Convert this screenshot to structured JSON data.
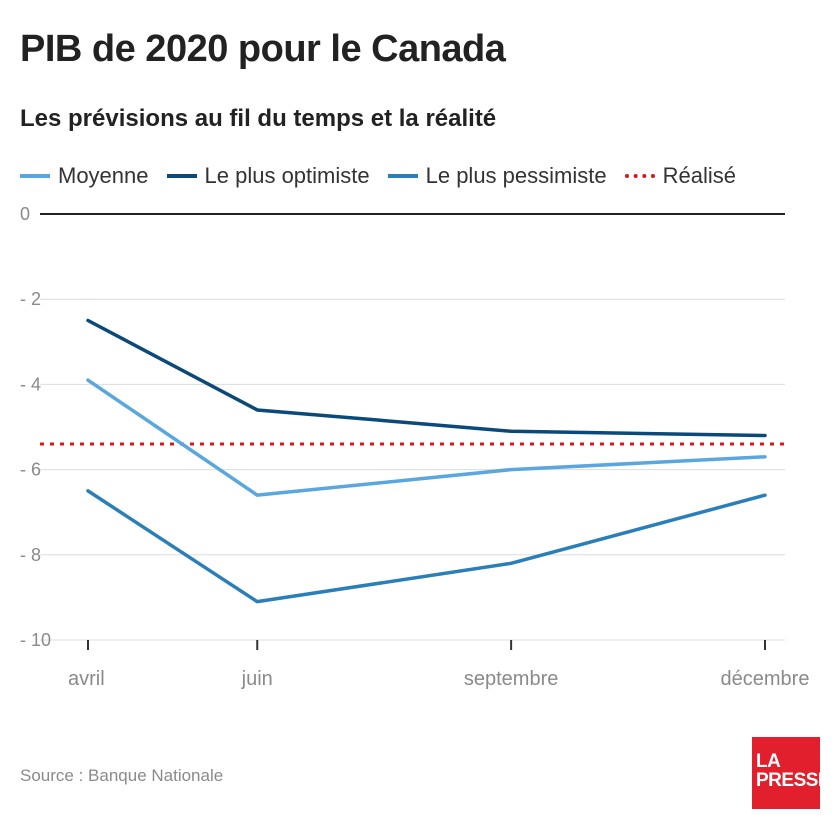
{
  "title": "PIB de 2020 pour le Canada",
  "subtitle": "Les prévisions au fil du temps et la réalité",
  "source": "Source : Banque Nationale",
  "logo": {
    "line1": "LA",
    "line2": "PRESSE",
    "color": "#e2202d"
  },
  "chart_data": {
    "type": "line",
    "categories": [
      "avril",
      "juin",
      "septembre",
      "décembre"
    ],
    "x_positions": [
      0,
      2,
      5,
      8
    ],
    "ylim": [
      -10,
      0
    ],
    "yticks": [
      0,
      -2,
      -4,
      -6,
      -8,
      -10
    ],
    "ytick_labels": [
      "0",
      "- 2",
      "- 4",
      "- 6",
      "- 8",
      "- 10"
    ],
    "grid": true,
    "legend_position": "top",
    "series": [
      {
        "name": "Moyenne",
        "color": "#5aa7e0",
        "style": "solid",
        "values": [
          -3.9,
          -6.6,
          -6.0,
          -5.7
        ]
      },
      {
        "name": "Le plus optimiste",
        "color": "#0a4a7a",
        "style": "solid",
        "values": [
          -2.5,
          -4.6,
          -5.1,
          -5.2
        ]
      },
      {
        "name": "Le plus pessimiste",
        "color": "#2a7fb8",
        "style": "solid",
        "values": [
          -6.5,
          -9.1,
          -8.2,
          -6.6
        ]
      },
      {
        "name": "Réalisé",
        "color": "#d7191c",
        "style": "dotted",
        "values": [
          -5.4,
          -5.4,
          -5.4,
          -5.4
        ]
      }
    ]
  }
}
